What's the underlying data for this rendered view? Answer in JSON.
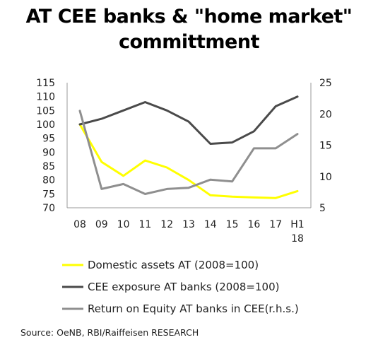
{
  "title_line1": "AT CEE banks & \"home market\"",
  "title_line2": "committment",
  "source": "Source: OeNB, RBI/Raiffeisen RESEARCH",
  "chart_data": {
    "type": "line",
    "categories": [
      "08",
      "09",
      "10",
      "11",
      "12",
      "13",
      "14",
      "15",
      "16",
      "17",
      "H1\n18"
    ],
    "left_axis": {
      "ylim": [
        70,
        115
      ],
      "ticks": [
        70,
        75,
        80,
        85,
        90,
        95,
        100,
        105,
        110,
        115
      ]
    },
    "right_axis": {
      "ylim": [
        5,
        25
      ],
      "ticks": [
        5,
        10,
        15,
        20,
        25
      ]
    },
    "grid": false,
    "legend_position": "bottom",
    "series": [
      {
        "name": "Domestic assets AT (2008=100)",
        "axis": "left",
        "color": "#ffff00",
        "values": [
          100,
          86.5,
          81.5,
          87,
          84.5,
          80,
          74.5,
          74,
          73.7,
          73.5,
          76
        ]
      },
      {
        "name": "CEE exposure AT banks (2008=100)",
        "axis": "left",
        "color": "#4a4a4a",
        "values": [
          100,
          102,
          105,
          108,
          105,
          101,
          93,
          93.5,
          97.5,
          106.5,
          110
        ]
      },
      {
        "name": "Return on Equity AT banks in CEE(r.h.s.)",
        "axis": "right",
        "color": "#8f8f8f",
        "values": [
          20.5,
          8,
          8.8,
          7.2,
          8,
          8.2,
          9.5,
          9.2,
          14.5,
          14.5,
          16.8
        ]
      }
    ]
  }
}
